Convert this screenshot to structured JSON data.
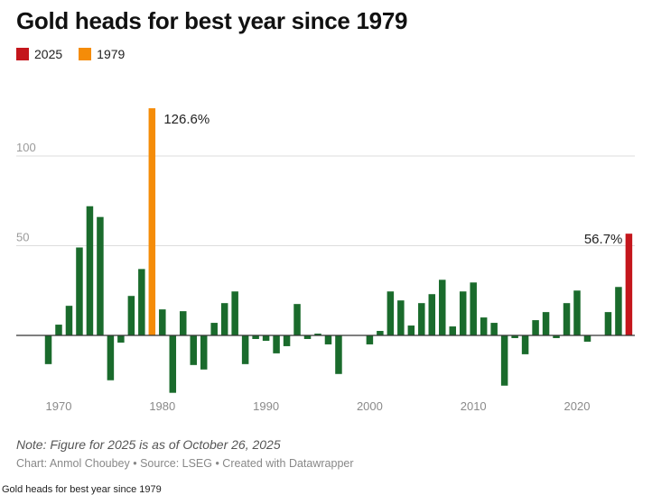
{
  "chart_data": {
    "type": "bar",
    "title": "Gold heads for best year since 1979",
    "legend": [
      {
        "label": "2025",
        "color": "#c4161c"
      },
      {
        "label": "1979",
        "color": "#f58c08"
      }
    ],
    "default_color": "#1a6b2c",
    "ylim": [
      -30,
      128
    ],
    "yticks": [
      50,
      100
    ],
    "xticks": [
      1970,
      1980,
      1990,
      2000,
      2010,
      2020
    ],
    "years": [
      1969,
      1970,
      1971,
      1972,
      1973,
      1974,
      1975,
      1976,
      1977,
      1978,
      1979,
      1980,
      1981,
      1982,
      1983,
      1984,
      1985,
      1986,
      1987,
      1988,
      1989,
      1990,
      1991,
      1992,
      1993,
      1994,
      1995,
      1996,
      1997,
      1998,
      1999,
      2000,
      2001,
      2002,
      2003,
      2004,
      2005,
      2006,
      2007,
      2008,
      2009,
      2010,
      2011,
      2012,
      2013,
      2014,
      2015,
      2016,
      2017,
      2018,
      2019,
      2020,
      2021,
      2022,
      2023,
      2024,
      2025
    ],
    "values": [
      -16,
      6,
      16.5,
      49,
      72,
      66,
      -25,
      -4,
      22,
      37,
      126.6,
      14.5,
      -32,
      13.5,
      -16.5,
      -19,
      7,
      18,
      24.5,
      -16,
      -2,
      -3,
      -10,
      -6,
      17.5,
      -2,
      1,
      -5,
      -21.5,
      0,
      0,
      -5,
      2.5,
      24.5,
      19.5,
      5.5,
      18,
      23,
      31,
      5,
      24.5,
      29.5,
      10,
      7,
      -28,
      -1.5,
      -10.5,
      8.5,
      13,
      -1.5,
      18,
      25,
      -3.5,
      0,
      13,
      27,
      56.7
    ],
    "highlight": {
      "1979": "#f58c08",
      "2025": "#c4161c"
    },
    "annotations": [
      {
        "year": 1979,
        "text": "126.6%"
      },
      {
        "year": 2025,
        "text": "56.7%"
      }
    ]
  },
  "note": "Note: Figure for 2025 is as of October 26, 2025",
  "credit": "Chart: Anmol Choubey • Source: LSEG • Created with Datawrapper",
  "caption": "Gold heads for best year since 1979"
}
